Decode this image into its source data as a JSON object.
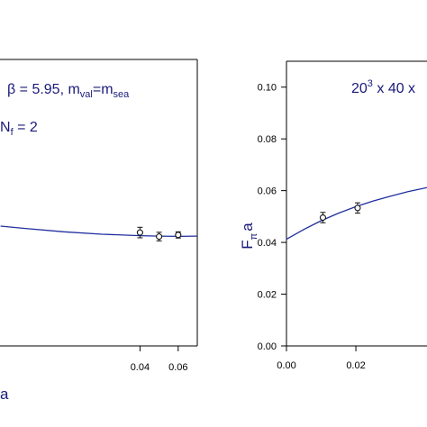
{
  "colors": {
    "curve": "#1f2f9e",
    "text": "#1a1a7a",
    "axis": "#000000",
    "marker": "#111111"
  },
  "chart_data": [
    {
      "type": "scatter",
      "panel": "left",
      "x_ticks": [
        "0.04",
        "0.06"
      ],
      "x_tick_values": [
        0.04,
        0.06
      ],
      "xlim": [
        -0.0333,
        0.07
      ],
      "ylim": [
        0.0,
        0.12
      ],
      "xlabel_fragment": "a",
      "annotations": {
        "beta_text": "β = 5.95, m",
        "val_sub": "val",
        "eq_text": "=m",
        "sea_sub": "sea",
        "nf_text": "N",
        "nf_sub": "f",
        "nf_value": " = 2"
      },
      "series": [
        {
          "points": [
            {
              "x": 0.04,
              "y": 0.0475,
              "err": 0.0022
            },
            {
              "x": 0.05,
              "y": 0.0458,
              "err": 0.0018
            },
            {
              "x": 0.06,
              "y": 0.0465,
              "err": 0.0013
            }
          ],
          "fit": [
            [
              -0.033,
              0.0502
            ],
            [
              -0.02,
              0.0492
            ],
            [
              0.0,
              0.0478
            ],
            [
              0.02,
              0.0468
            ],
            [
              0.04,
              0.0462
            ],
            [
              0.05,
              0.046
            ],
            [
              0.06,
              0.0459
            ],
            [
              0.07,
              0.046
            ]
          ]
        }
      ]
    },
    {
      "type": "scatter",
      "panel": "right",
      "x_ticks": [
        "0.00",
        "0.02"
      ],
      "x_tick_values": [
        0.0,
        0.02
      ],
      "y_ticks": [
        "0.00",
        "0.02",
        "0.04",
        "0.06",
        "0.08",
        "0.10"
      ],
      "y_tick_values": [
        0.0,
        0.02,
        0.04,
        0.06,
        0.08,
        0.1
      ],
      "xlim": [
        0.0,
        0.0405
      ],
      "ylim": [
        0.0,
        0.11
      ],
      "ylabel_main": "F",
      "ylabel_sub": "π",
      "ylabel_tail": "a",
      "annotations": {
        "lattice_base": "20",
        "lattice_exp": "3",
        "lattice_rest": " x 40 x"
      },
      "series": [
        {
          "points": [
            {
              "x": 0.0105,
              "y": 0.0496,
              "err": 0.002
            },
            {
              "x": 0.0205,
              "y": 0.0533,
              "err": 0.002
            }
          ],
          "fit": [
            [
              0.0,
              0.0412
            ],
            [
              0.005,
              0.045
            ],
            [
              0.01,
              0.0484
            ],
            [
              0.015,
              0.0513
            ],
            [
              0.02,
              0.0538
            ],
            [
              0.025,
              0.056
            ],
            [
              0.03,
              0.0579
            ],
            [
              0.035,
              0.0596
            ],
            [
              0.0405,
              0.0612
            ]
          ]
        }
      ]
    }
  ]
}
